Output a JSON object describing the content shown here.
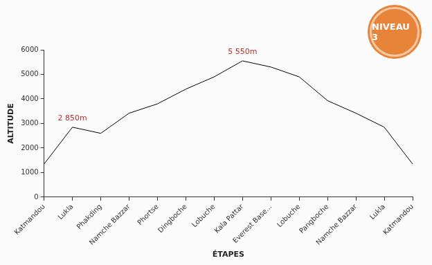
{
  "chart_data": {
    "type": "line",
    "badge": "NIVEAU 3",
    "x_label": "ÉTAPES",
    "y_label": "ALTITUDE",
    "categories": [
      "Katmandou",
      "Lukla",
      "Phakding",
      "Namche Bazzar",
      "Phortse",
      "Dingboche",
      "Lobuche",
      "Kala Pattar",
      "Everest Base...",
      "Lobuche",
      "Pangboche",
      "Namche Bazzar",
      "Lukla",
      "Katmandou"
    ],
    "values": [
      1350,
      2850,
      2600,
      3420,
      3800,
      4400,
      4900,
      5550,
      5300,
      4900,
      3930,
      3420,
      2850,
      1350
    ],
    "color": "#000000",
    "marker": "none",
    "ylim": [
      0,
      6000
    ],
    "yticks": [
      0,
      1000,
      2000,
      3000,
      4000,
      5000,
      6000
    ],
    "grid": false,
    "annotations": [
      {
        "text": "2 850m",
        "category": "Lukla",
        "value": 2850
      },
      {
        "text": "5 550m",
        "category": "Kala Pattar",
        "value": 5550
      }
    ]
  }
}
